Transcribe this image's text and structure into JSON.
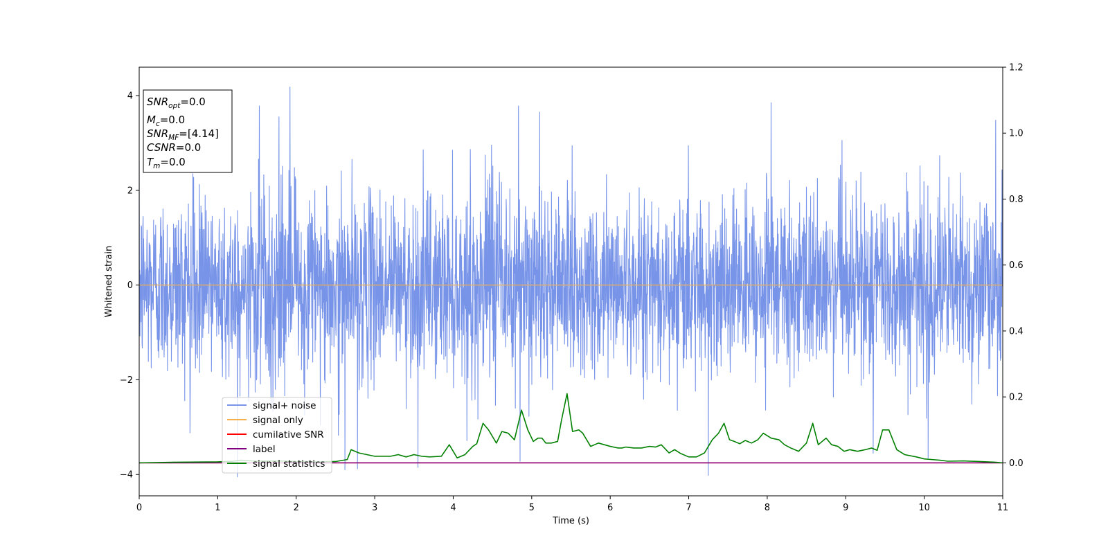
{
  "chart_data": {
    "type": "line",
    "title": "",
    "xlabel": "Time (s)",
    "ylabel": "Whitened strain",
    "xlim": [
      0,
      11
    ],
    "ylim": [
      -4.45,
      4.6
    ],
    "y2lim": [
      -0.1,
      1.2
    ],
    "x_ticks": [
      "0",
      "1",
      "2",
      "3",
      "4",
      "5",
      "6",
      "7",
      "8",
      "9",
      "10",
      "11"
    ],
    "y_ticks": [
      "-4",
      "-2",
      "0",
      "2",
      "4"
    ],
    "y2_ticks": [
      "0.0",
      "0.2",
      "0.4",
      "0.6",
      "0.8",
      "1.0",
      "1.2"
    ],
    "grid": false,
    "legend_position": "lower-left",
    "info_box": {
      "snr_opt": {
        "base": "SNR",
        "sub": "opt",
        "value": "=0.0"
      },
      "mc": {
        "base": "M",
        "sub": "c",
        "value": "=0.0"
      },
      "snr_mf": {
        "base": "SNR",
        "sub": "MF",
        "value": "=[4.14]"
      },
      "csnr": {
        "base": "CSNR",
        "sub": "",
        "value": "=0.0"
      },
      "tm": {
        "base": "T",
        "sub": "m",
        "value": "=0.0"
      }
    },
    "series": [
      {
        "name": "signal+ noise",
        "color": "#7894e8",
        "axis": "left",
        "description_type": "noise",
        "samples": 3300,
        "std": 0.95,
        "spikes": [
          {
            "x": 1.92,
            "y": 4.18
          },
          {
            "x": 1.53,
            "y": 3.78
          },
          {
            "x": 1.78,
            "y": 3.55
          },
          {
            "x": 4.83,
            "y": 3.78
          },
          {
            "x": 5.1,
            "y": 3.65
          },
          {
            "x": 8.05,
            "y": 3.85
          },
          {
            "x": 10.91,
            "y": 3.48
          },
          {
            "x": 7.25,
            "y": -4.02
          },
          {
            "x": 1.25,
            "y": -4.05
          },
          {
            "x": 2.62,
            "y": -3.9
          },
          {
            "x": 2.78,
            "y": -3.88
          },
          {
            "x": 3.55,
            "y": -3.85
          },
          {
            "x": 4.85,
            "y": -3.72
          },
          {
            "x": 9.35,
            "y": -3.55
          },
          {
            "x": 10.05,
            "y": -3.65
          }
        ]
      },
      {
        "name": "signal only",
        "color": "#f5b04a",
        "axis": "left",
        "x": [
          0,
          11
        ],
        "y": [
          0,
          0
        ]
      },
      {
        "name": "cumilative SNR",
        "color": "#ff0000",
        "axis": "right",
        "x": [
          0,
          11
        ],
        "y": [
          0,
          0
        ]
      },
      {
        "name": "label",
        "color": "#800080",
        "axis": "right",
        "x": [
          0,
          11
        ],
        "y": [
          0,
          0
        ]
      },
      {
        "name": "signal statistics",
        "color": "#008000",
        "axis": "right",
        "x": [
          0,
          0.5,
          1.0,
          1.2,
          1.3,
          1.5,
          1.8,
          2.0,
          2.3,
          2.5,
          2.65,
          2.7,
          2.8,
          2.9,
          3.0,
          3.2,
          3.3,
          3.4,
          3.5,
          3.6,
          3.7,
          3.85,
          3.95,
          4.05,
          4.15,
          4.25,
          4.3,
          4.38,
          4.45,
          4.55,
          4.62,
          4.7,
          4.78,
          4.87,
          4.95,
          5.02,
          5.08,
          5.13,
          5.18,
          5.25,
          5.33,
          5.38,
          5.45,
          5.52,
          5.6,
          5.65,
          5.75,
          5.85,
          6.0,
          6.1,
          6.15,
          6.2,
          6.3,
          6.4,
          6.5,
          6.58,
          6.65,
          6.75,
          6.82,
          6.9,
          7.0,
          7.1,
          7.2,
          7.3,
          7.38,
          7.45,
          7.52,
          7.58,
          7.65,
          7.72,
          7.8,
          7.88,
          7.95,
          8.05,
          8.15,
          8.22,
          8.3,
          8.4,
          8.5,
          8.58,
          8.65,
          8.75,
          8.82,
          8.9,
          8.98,
          9.05,
          9.15,
          9.25,
          9.33,
          9.4,
          9.47,
          9.55,
          9.65,
          9.75,
          9.9,
          10.0,
          10.1,
          10.2,
          10.3,
          10.5,
          10.7,
          10.9,
          11.0
        ],
        "y": [
          0.0,
          0.002,
          0.003,
          0.005,
          0.008,
          0.005,
          0.006,
          0.004,
          0.003,
          0.004,
          0.01,
          0.04,
          0.03,
          0.025,
          0.02,
          0.02,
          0.025,
          0.018,
          0.025,
          0.02,
          0.018,
          0.02,
          0.055,
          0.015,
          0.025,
          0.05,
          0.058,
          0.12,
          0.1,
          0.06,
          0.095,
          0.09,
          0.07,
          0.16,
          0.1,
          0.065,
          0.075,
          0.075,
          0.06,
          0.06,
          0.065,
          0.13,
          0.21,
          0.095,
          0.1,
          0.09,
          0.05,
          0.06,
          0.05,
          0.045,
          0.045,
          0.048,
          0.045,
          0.045,
          0.05,
          0.048,
          0.055,
          0.03,
          0.04,
          0.028,
          0.018,
          0.018,
          0.03,
          0.07,
          0.09,
          0.12,
          0.07,
          0.065,
          0.058,
          0.068,
          0.06,
          0.07,
          0.09,
          0.075,
          0.07,
          0.055,
          0.045,
          0.035,
          0.06,
          0.12,
          0.055,
          0.075,
          0.055,
          0.05,
          0.035,
          0.04,
          0.035,
          0.04,
          0.045,
          0.038,
          0.1,
          0.1,
          0.04,
          0.025,
          0.018,
          0.012,
          0.01,
          0.008,
          0.005,
          0.006,
          0.004,
          0.002,
          0.0
        ]
      }
    ]
  }
}
